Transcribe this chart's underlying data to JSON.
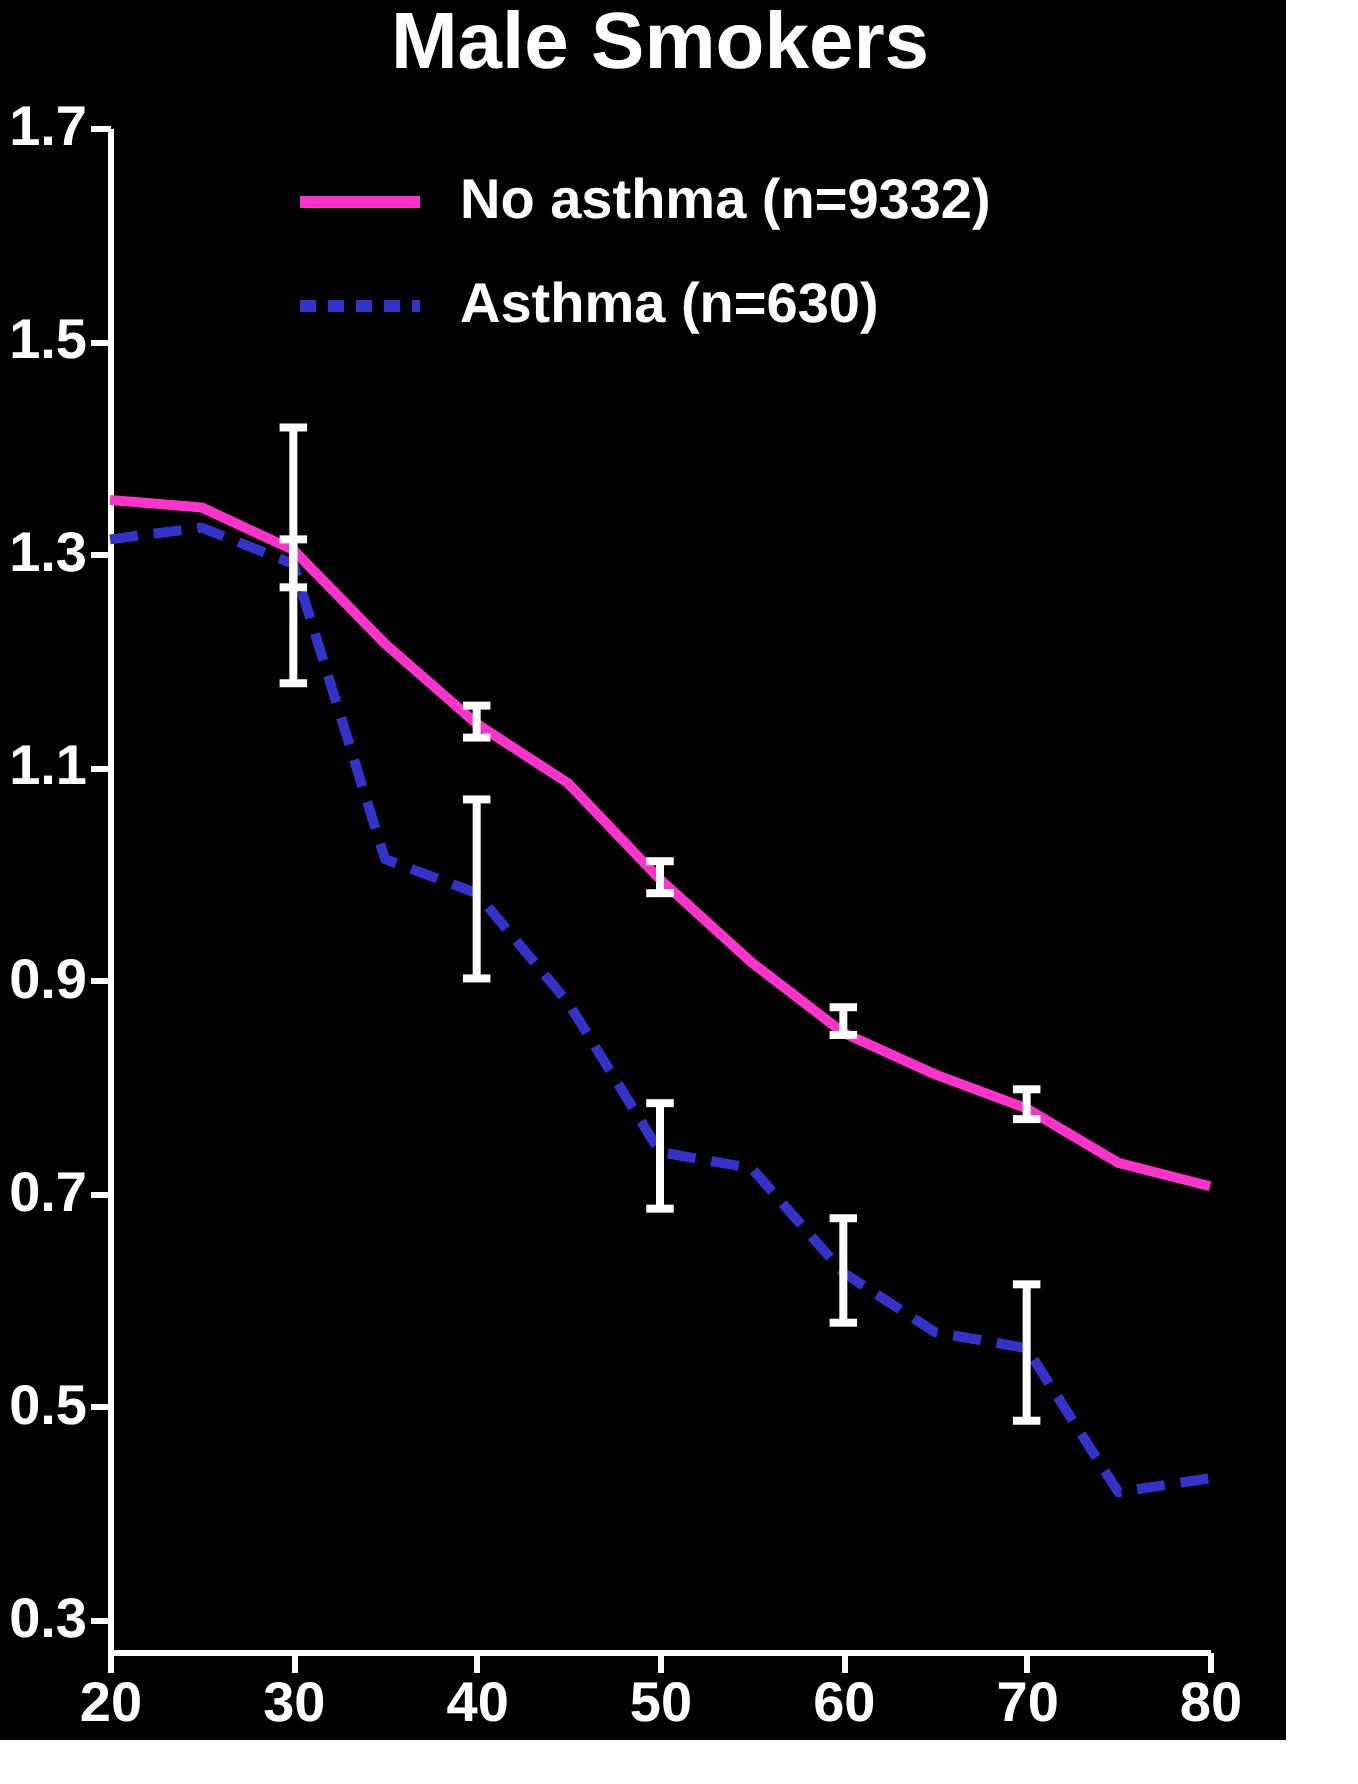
{
  "chart_data": {
    "type": "line",
    "title": "Male Smokers",
    "x": [
      20,
      25,
      30,
      35,
      40,
      45,
      50,
      55,
      60,
      65,
      70,
      75,
      80
    ],
    "series": [
      {
        "name": "No asthma (n=9332)",
        "color": "#ff33cc",
        "line_style": "solid",
        "values": [
          1.351,
          1.344,
          1.304,
          1.216,
          1.141,
          1.085,
          0.995,
          0.917,
          0.851,
          0.812,
          0.78,
          0.729,
          0.707
        ],
        "errors": [
          null,
          null,
          [
            1.269,
            1.314
          ],
          null,
          [
            1.128,
            1.158
          ],
          null,
          [
            0.982,
            1.012
          ],
          null,
          [
            0.849,
            0.875
          ],
          null,
          [
            0.77,
            0.798
          ],
          null,
          null
        ]
      },
      {
        "name": "Asthma (n=630)",
        "color": "#3333cc",
        "line_style": "dashed",
        "values": [
          1.314,
          1.325,
          1.291,
          1.014,
          0.982,
          0.879,
          0.739,
          0.724,
          0.626,
          0.57,
          0.555,
          0.42,
          0.433
        ],
        "errors": [
          null,
          null,
          [
            1.179,
            1.419
          ],
          null,
          [
            0.902,
            1.07
          ],
          null,
          [
            0.686,
            0.785
          ],
          null,
          [
            0.579,
            0.677
          ],
          null,
          [
            0.487,
            0.615
          ],
          null,
          null
        ]
      }
    ],
    "xlim": [
      20,
      80
    ],
    "xticks": [
      20,
      30,
      40,
      50,
      60,
      70,
      80
    ],
    "ylim": [
      0.27,
      1.7
    ],
    "yticks": [
      0.3,
      0.5,
      0.7,
      0.9,
      1.1,
      1.3,
      1.5,
      1.7
    ],
    "grid": false,
    "legend": "top right",
    "marker": "none"
  }
}
